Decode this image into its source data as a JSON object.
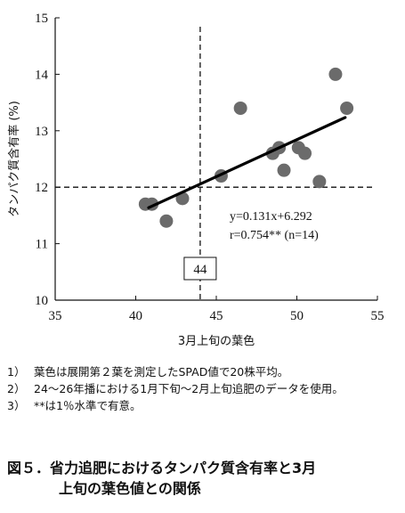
{
  "chart_data": {
    "type": "scatter",
    "xlabel": "3月上旬の葉色",
    "ylabel": "タンパク質含有率 (%)",
    "xlim": [
      35,
      55
    ],
    "ylim": [
      10,
      15
    ],
    "xticks": [
      "35",
      "40",
      "45",
      "50",
      "55"
    ],
    "yticks": [
      "10",
      "11",
      "12",
      "13",
      "14",
      "15"
    ],
    "points": [
      {
        "x": 40.6,
        "y": 11.7
      },
      {
        "x": 41.0,
        "y": 11.7
      },
      {
        "x": 41.9,
        "y": 11.4
      },
      {
        "x": 42.9,
        "y": 11.8
      },
      {
        "x": 45.3,
        "y": 12.2
      },
      {
        "x": 46.5,
        "y": 13.4
      },
      {
        "x": 48.5,
        "y": 12.6
      },
      {
        "x": 48.9,
        "y": 12.7
      },
      {
        "x": 49.2,
        "y": 12.3
      },
      {
        "x": 50.1,
        "y": 12.7
      },
      {
        "x": 50.5,
        "y": 12.6
      },
      {
        "x": 51.4,
        "y": 12.1
      },
      {
        "x": 52.4,
        "y": 14.0
      },
      {
        "x": 53.1,
        "y": 13.4
      }
    ],
    "regression": {
      "slope": 0.131,
      "intercept": 6.292,
      "x_range": [
        40.8,
        53.0
      ]
    },
    "reference_lines": {
      "x": 44,
      "y": 12
    },
    "annotations": {
      "equation": "y=0.131x+6.292",
      "stats": "r=0.754** (n=14)",
      "threshold_label": "44"
    },
    "point_color": "#6b6b6b"
  },
  "notes": [
    {
      "num": "1）",
      "text": "葉色は展開第２葉を測定したSPAD値で20株平均。"
    },
    {
      "num": "2）",
      "text": "24〜26年播における1月下旬〜2月上旬追肥のデータを使用。"
    },
    {
      "num": "3）",
      "text": "**は1％水準で有意。"
    }
  ],
  "caption": {
    "label": "図５．",
    "line1": "省力追肥におけるタンパク質含有率と3月",
    "line2": "上旬の葉色値との関係"
  }
}
